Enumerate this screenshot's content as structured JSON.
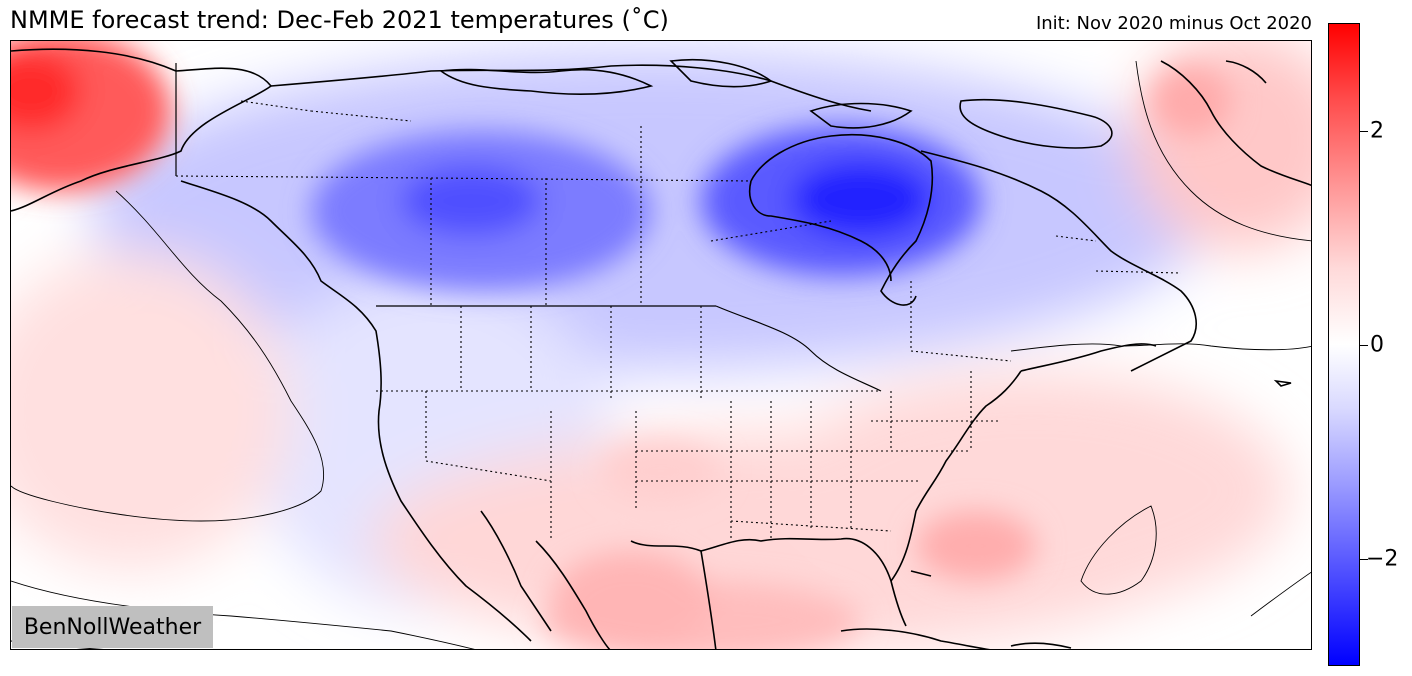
{
  "title": "NMME forecast trend: Dec-Feb 2021 temperatures (˚C)",
  "init_label": "Init: Nov 2020 minus Oct 2020",
  "watermark": "BenNollWeather",
  "colorbar": {
    "ticks": [
      "2",
      "0",
      "−2"
    ],
    "min": -3,
    "max": 3,
    "colors": {
      "high": "#ff0000",
      "mid": "#ffffff",
      "low": "#0000ff"
    }
  },
  "anomaly_regions": [
    {
      "region": "Alaska / Bering",
      "sign": "warm",
      "strength": "strong"
    },
    {
      "region": "NE Pacific",
      "sign": "warm",
      "strength": "weak"
    },
    {
      "region": "Canada (central prairies)",
      "sign": "cold",
      "strength": "strong"
    },
    {
      "region": "Hudson Bay",
      "sign": "cold",
      "strength": "strongest"
    },
    {
      "region": "Western US",
      "sign": "cold",
      "strength": "weak"
    },
    {
      "region": "Southern / SE US",
      "sign": "warm",
      "strength": "moderate"
    },
    {
      "region": "Gulf of Mexico",
      "sign": "warm",
      "strength": "moderate"
    },
    {
      "region": "W Atlantic",
      "sign": "warm",
      "strength": "moderate"
    },
    {
      "region": "Greenland",
      "sign": "warm",
      "strength": "moderate"
    }
  ]
}
